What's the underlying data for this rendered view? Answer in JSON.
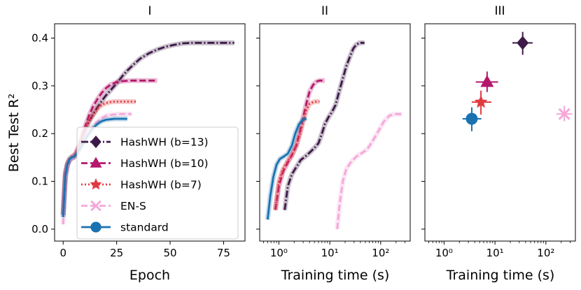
{
  "figure": {
    "ylabel": "Best Test R²",
    "ytick_labels": [
      "0.0",
      "0.1",
      "0.2",
      "0.3",
      "0.4"
    ],
    "legend_placement": "lower-left of panel I"
  },
  "chart_data": [
    {
      "panel": "I",
      "type": "line",
      "title": "I",
      "xlabel": "Epoch",
      "ylabel": "Best Test R²",
      "xlim": [
        -4,
        85
      ],
      "ylim": [
        -0.025,
        0.43
      ],
      "x_ticks": [
        0,
        25,
        50,
        75
      ],
      "x_tick_labels": [
        "0",
        "25",
        "50",
        "75"
      ],
      "y_ticks": [
        0.0,
        0.1,
        0.2,
        0.3,
        0.4
      ],
      "series": [
        {
          "name": "HashWH (b=13)",
          "color": "#3d1a47",
          "style": "dashdot",
          "marker": "diamond",
          "x": [
            0,
            1,
            2,
            3,
            4,
            5,
            6,
            8,
            10,
            12,
            14,
            16,
            18,
            20,
            22,
            25,
            28,
            30,
            33,
            36,
            40,
            44,
            48,
            52,
            56,
            60,
            65,
            70,
            75,
            80
          ],
          "y": [
            0.03,
            0.11,
            0.135,
            0.145,
            0.148,
            0.15,
            0.155,
            0.175,
            0.205,
            0.225,
            0.24,
            0.255,
            0.268,
            0.28,
            0.29,
            0.305,
            0.322,
            0.332,
            0.345,
            0.357,
            0.368,
            0.376,
            0.382,
            0.386,
            0.389,
            0.39,
            0.39,
            0.39,
            0.39,
            0.39
          ]
        },
        {
          "name": "HashWH (b=10)",
          "color": "#b5176b",
          "style": "dashed",
          "marker": "triangle",
          "x": [
            0,
            1,
            2,
            3,
            4,
            5,
            6,
            8,
            10,
            12,
            14,
            16,
            18,
            20,
            22,
            25,
            28,
            32,
            36,
            40,
            44
          ],
          "y": [
            0.03,
            0.115,
            0.135,
            0.145,
            0.15,
            0.153,
            0.158,
            0.182,
            0.212,
            0.237,
            0.257,
            0.272,
            0.285,
            0.295,
            0.302,
            0.308,
            0.31,
            0.311,
            0.311,
            0.311,
            0.311
          ]
        },
        {
          "name": "HashWH (b=7)",
          "color": "#e03a40",
          "style": "dotted",
          "marker": "star",
          "x": [
            0,
            1,
            2,
            3,
            4,
            5,
            6,
            8,
            10,
            12,
            14,
            16,
            18,
            20,
            22,
            24,
            26,
            28,
            30,
            32,
            34
          ],
          "y": [
            0.03,
            0.12,
            0.138,
            0.148,
            0.152,
            0.155,
            0.16,
            0.18,
            0.205,
            0.225,
            0.24,
            0.252,
            0.26,
            0.264,
            0.266,
            0.267,
            0.267,
            0.267,
            0.267,
            0.267,
            0.267
          ]
        },
        {
          "name": "EN-S",
          "color": "#f4a7d9",
          "style": "dashed",
          "marker": "x",
          "x": [
            0,
            1,
            2,
            3,
            4,
            5,
            6,
            8,
            10,
            12,
            14,
            16,
            18,
            20,
            22,
            24,
            26,
            28,
            30,
            32
          ],
          "y": [
            0.01,
            0.1,
            0.13,
            0.143,
            0.148,
            0.151,
            0.155,
            0.17,
            0.188,
            0.203,
            0.215,
            0.225,
            0.232,
            0.237,
            0.239,
            0.24,
            0.241,
            0.241,
            0.241,
            0.241
          ]
        },
        {
          "name": "standard",
          "color": "#1a72b0",
          "style": "solid",
          "marker": "circle",
          "x": [
            0,
            1,
            2,
            3,
            4,
            5,
            6,
            8,
            10,
            12,
            14,
            16,
            18,
            20,
            22,
            24,
            26,
            28,
            30
          ],
          "y": [
            0.025,
            0.11,
            0.135,
            0.146,
            0.15,
            0.152,
            0.156,
            0.17,
            0.185,
            0.2,
            0.212,
            0.22,
            0.226,
            0.229,
            0.23,
            0.231,
            0.231,
            0.231,
            0.231
          ]
        }
      ]
    },
    {
      "panel": "II",
      "type": "line",
      "title": "II",
      "xlabel": "Training time (s)",
      "x_scale": "log",
      "xlim": [
        0.42,
        380
      ],
      "ylim": [
        -0.025,
        0.43
      ],
      "x_ticks": [
        1,
        10,
        100
      ],
      "x_tick_labels": [
        "10⁰",
        "10¹",
        "10²"
      ],
      "series": [
        {
          "name": "HashWH (b=13)",
          "color": "#3d1a47",
          "style": "dashdot",
          "x": [
            1.3,
            1.5,
            1.8,
            2.2,
            2.7,
            3.3,
            4.0,
            5.0,
            6.0,
            7.0,
            8.0,
            9.5,
            11,
            13,
            15,
            18,
            21,
            25,
            29,
            33,
            38,
            43,
            48
          ],
          "y": [
            0.04,
            0.09,
            0.115,
            0.13,
            0.145,
            0.152,
            0.16,
            0.17,
            0.18,
            0.2,
            0.22,
            0.235,
            0.245,
            0.26,
            0.285,
            0.315,
            0.34,
            0.362,
            0.378,
            0.386,
            0.39,
            0.39,
            0.39
          ]
        },
        {
          "name": "HashWH (b=10)",
          "color": "#b5176b",
          "style": "dashed",
          "x": [
            0.85,
            1.0,
            1.2,
            1.5,
            1.8,
            2.2,
            2.6,
            3.0,
            3.5,
            4.0,
            4.7,
            5.5,
            6.3,
            7.2,
            8.0
          ],
          "y": [
            0.04,
            0.09,
            0.12,
            0.14,
            0.155,
            0.175,
            0.205,
            0.235,
            0.265,
            0.288,
            0.302,
            0.309,
            0.311,
            0.311,
            0.311
          ]
        },
        {
          "name": "HashWH (b=7)",
          "color": "#e03a40",
          "style": "dotted",
          "x": [
            0.85,
            1.0,
            1.2,
            1.5,
            1.8,
            2.2,
            2.6,
            3.0,
            3.5,
            4.0,
            4.7,
            5.5,
            6.3
          ],
          "y": [
            0.04,
            0.1,
            0.125,
            0.143,
            0.155,
            0.175,
            0.2,
            0.225,
            0.25,
            0.262,
            0.266,
            0.267,
            0.267
          ]
        },
        {
          "name": "EN-S",
          "color": "#f4a7d9",
          "style": "dashed",
          "x": [
            14,
            15.5,
            18,
            21,
            25,
            30,
            36,
            44,
            55,
            70,
            90,
            115,
            150,
            200,
            260
          ],
          "y": [
            0.0,
            0.05,
            0.1,
            0.125,
            0.138,
            0.147,
            0.155,
            0.16,
            0.168,
            0.185,
            0.205,
            0.225,
            0.238,
            0.241,
            0.241
          ]
        },
        {
          "name": "standard",
          "color": "#1a72b0",
          "style": "solid",
          "x": [
            0.6,
            0.68,
            0.78,
            0.9,
            1.05,
            1.25,
            1.5,
            1.8,
            2.1,
            2.5,
            3.0,
            3.5
          ],
          "y": [
            0.02,
            0.07,
            0.11,
            0.135,
            0.147,
            0.152,
            0.158,
            0.175,
            0.2,
            0.22,
            0.23,
            0.231
          ]
        }
      ]
    },
    {
      "panel": "III",
      "type": "scatter",
      "title": "III",
      "xlabel": "Training time (s)",
      "x_scale": "log",
      "xlim": [
        0.42,
        380
      ],
      "ylim": [
        -0.025,
        0.43
      ],
      "x_ticks": [
        1,
        10,
        100
      ],
      "x_tick_labels": [
        "10⁰",
        "10¹",
        "10²"
      ],
      "points": [
        {
          "name": "HashWH (b=13)",
          "color": "#3d1a47",
          "marker": "diamond",
          "x": 35,
          "y": 0.39,
          "xerr": [
            22,
            55
          ],
          "yerr": [
            0.365,
            0.413
          ]
        },
        {
          "name": "HashWH (b=10)",
          "color": "#b5176b",
          "marker": "triangle",
          "x": 7,
          "y": 0.308,
          "xerr": [
            4.2,
            11.5
          ],
          "yerr": [
            0.287,
            0.33
          ]
        },
        {
          "name": "HashWH (b=7)",
          "color": "#e03a40",
          "marker": "star",
          "x": 5.3,
          "y": 0.266,
          "xerr": [
            3.5,
            8.5
          ],
          "yerr": [
            0.24,
            0.29
          ]
        },
        {
          "name": "EN-S",
          "color": "#f4a7d9",
          "marker": "x",
          "x": 230,
          "y": 0.241,
          "xerr": [
            160,
            330
          ],
          "yerr": [
            0.226,
            0.258
          ]
        },
        {
          "name": "standard",
          "color": "#1a72b0",
          "marker": "circle",
          "x": 3.5,
          "y": 0.231,
          "xerr": [
            2.3,
            5.4
          ],
          "yerr": [
            0.205,
            0.255
          ]
        }
      ]
    }
  ]
}
